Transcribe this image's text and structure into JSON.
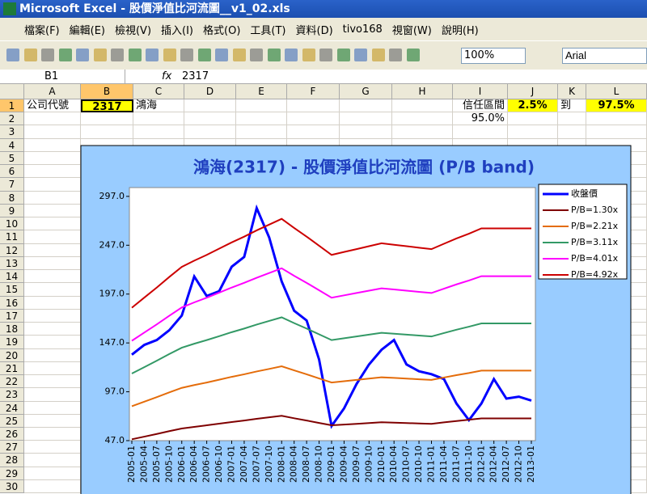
{
  "window": {
    "title": "Microsoft Excel - 股價淨值比河流圖__v1_02.xls"
  },
  "menu": [
    "檔案(F)",
    "編輯(E)",
    "檢視(V)",
    "插入(I)",
    "格式(O)",
    "工具(T)",
    "資料(D)",
    "tivo168",
    "視窗(W)",
    "說明(H)"
  ],
  "toolbar": {
    "zoom": "100%",
    "font": "Arial"
  },
  "formula_bar": {
    "name_box": "B1",
    "fx": "fx",
    "content": "2317"
  },
  "sheet": {
    "columns": [
      "A",
      "B",
      "C",
      "D",
      "E",
      "F",
      "G",
      "H",
      "I",
      "J",
      "K",
      "L"
    ],
    "rows": [
      1,
      2,
      3,
      4,
      5,
      6,
      7,
      8,
      9,
      10,
      11,
      12,
      13,
      14,
      15,
      16,
      17,
      18,
      19,
      20,
      21,
      22,
      23,
      24,
      25,
      26,
      27,
      28,
      29,
      30
    ],
    "cells": [
      [
        "公司代號",
        "2317",
        "鴻海",
        null,
        null,
        null,
        null,
        null,
        "信任區間",
        "2.5%",
        "到",
        "97.5%"
      ],
      [
        null,
        null,
        null,
        null,
        null,
        null,
        null,
        null,
        "95.0%",
        null,
        null,
        null
      ]
    ]
  },
  "chart_data": {
    "type": "line",
    "title": "鴻海(2317)  - 股價淨值比河流圖 (P/B band)",
    "x": [
      "2005-01",
      "2005-04",
      "2005-07",
      "2005-10",
      "2006-01",
      "2006-04",
      "2006-07",
      "2006-10",
      "2007-01",
      "2007-04",
      "2007-07",
      "2007-10",
      "2008-01",
      "2008-04",
      "2008-07",
      "2008-10",
      "2009-01",
      "2009-04",
      "2009-07",
      "2009-10",
      "2010-01",
      "2010-04",
      "2010-07",
      "2010-10",
      "2011-01",
      "2011-04",
      "2011-07",
      "2011-10",
      "2012-01",
      "2012-04",
      "2012-07",
      "2012-10",
      "2013-01"
    ],
    "ylim": [
      47,
      306
    ],
    "yticks": [
      {
        "value": 47,
        "label": "47.0"
      },
      {
        "value": 97,
        "label": "97.0"
      },
      {
        "value": 147,
        "label": "147.0"
      },
      {
        "value": 197,
        "label": "197.0"
      },
      {
        "value": 247,
        "label": "247.0"
      },
      {
        "value": 297,
        "label": "297.0"
      }
    ],
    "legend": "right",
    "series": [
      {
        "name": "收盤價",
        "color": "#0000ff",
        "values": [
          135,
          145,
          150,
          160,
          175,
          215,
          195,
          200,
          225,
          235,
          285,
          255,
          210,
          180,
          170,
          130,
          62,
          80,
          105,
          125,
          140,
          150,
          125,
          118,
          115,
          110,
          85,
          68,
          85,
          110,
          90,
          92,
          88
        ]
      },
      {
        "name": "P/B=1.30x",
        "color": "#7f0000",
        "values": [
          48.4,
          51.1,
          53.8,
          56.7,
          59.4,
          61.1,
          62.7,
          64.4,
          66.0,
          67.6,
          69.3,
          70.9,
          72.4,
          69.9,
          67.6,
          65.1,
          62.7,
          63.4,
          64.2,
          65.0,
          65.8,
          65.4,
          65.0,
          64.6,
          64.2,
          65.7,
          67.1,
          68.4,
          69.8,
          69.8,
          69.8,
          69.8,
          69.8
        ]
      },
      {
        "name": "P/B=2.21x",
        "color": "#e46c0a",
        "values": [
          82.2,
          86.9,
          91.5,
          96.4,
          101.0,
          103.9,
          106.5,
          109.4,
          112.3,
          114.9,
          117.8,
          120.4,
          123.1,
          118.9,
          114.9,
          110.7,
          106.5,
          107.8,
          109.2,
          110.5,
          111.8,
          111.2,
          110.5,
          109.8,
          109.2,
          111.6,
          114.0,
          116.2,
          118.7,
          118.7,
          118.7,
          118.7,
          118.7
        ]
      },
      {
        "name": "P/B=3.11x",
        "color": "#339966",
        "values": [
          115.7,
          122.2,
          128.8,
          135.6,
          142.1,
          146.2,
          149.9,
          153.9,
          158.0,
          161.7,
          165.8,
          169.5,
          173.2,
          167.3,
          161.7,
          155.8,
          149.9,
          151.8,
          153.6,
          155.5,
          157.4,
          156.4,
          155.5,
          154.6,
          153.6,
          157.1,
          160.5,
          163.6,
          167.0,
          167.0,
          167.0,
          167.0,
          167.0
        ]
      },
      {
        "name": "P/B=4.01x",
        "color": "#ff00ff",
        "values": [
          149.2,
          157.6,
          166.0,
          174.8,
          183.3,
          188.5,
          193.3,
          198.5,
          203.7,
          208.5,
          213.7,
          218.5,
          223.4,
          215.7,
          208.5,
          200.9,
          193.3,
          195.7,
          198.1,
          200.5,
          202.9,
          201.7,
          200.5,
          199.3,
          198.1,
          202.5,
          206.9,
          210.9,
          215.3,
          215.3,
          215.3,
          215.3,
          215.3
        ]
      },
      {
        "name": "P/B=4.92x",
        "color": "#cc0000",
        "values": [
          183.0,
          193.4,
          203.7,
          214.5,
          224.8,
          231.2,
          237.1,
          243.5,
          249.9,
          255.8,
          262.2,
          268.1,
          274.0,
          264.7,
          255.8,
          246.5,
          237.1,
          240.1,
          243.0,
          246.0,
          249.0,
          247.5,
          246.0,
          244.5,
          243.0,
          248.5,
          253.9,
          258.8,
          264.2,
          264.2,
          264.2,
          264.2,
          264.2
        ]
      }
    ]
  }
}
